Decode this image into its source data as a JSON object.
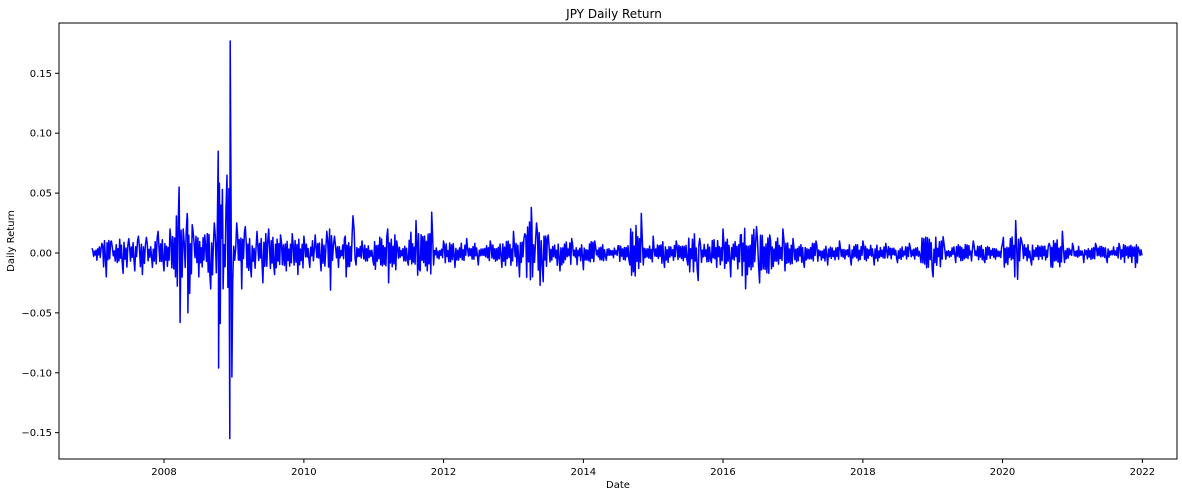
{
  "chart_data": {
    "type": "line",
    "title": "JPY Daily Return",
    "xlabel": "Date",
    "ylabel": "Daily Return",
    "x_range": [
      "2006-07-01",
      "2022-07-01"
    ],
    "ylim": [
      -0.172,
      0.192
    ],
    "x_ticks": [
      {
        "date": "2008-01-01",
        "label": "2008"
      },
      {
        "date": "2010-01-01",
        "label": "2010"
      },
      {
        "date": "2012-01-01",
        "label": "2012"
      },
      {
        "date": "2014-01-01",
        "label": "2014"
      },
      {
        "date": "2016-01-01",
        "label": "2016"
      },
      {
        "date": "2018-01-01",
        "label": "2018"
      },
      {
        "date": "2020-01-01",
        "label": "2020"
      },
      {
        "date": "2022-01-01",
        "label": "2022"
      }
    ],
    "y_ticks": [
      {
        "value": -0.15,
        "label": "−0.15"
      },
      {
        "value": -0.1,
        "label": "−0.10"
      },
      {
        "value": -0.05,
        "label": "−0.05"
      },
      {
        "value": 0.0,
        "label": "0.00"
      },
      {
        "value": 0.05,
        "label": "0.05"
      },
      {
        "value": 0.1,
        "label": "0.10"
      },
      {
        "value": 0.15,
        "label": "0.15"
      }
    ],
    "grid": false,
    "legend": "none",
    "series": [
      {
        "color": "#0000ff",
        "points": [
          [
            "2006-12-20",
            0.004
          ],
          [
            "2007-01-15",
            -0.006
          ],
          [
            "2007-02-10",
            0.008
          ],
          [
            "2007-03-05",
            -0.02
          ],
          [
            "2007-04-01",
            0.01
          ],
          [
            "2007-05-01",
            -0.008
          ],
          [
            "2007-06-01",
            -0.017
          ],
          [
            "2007-07-01",
            0.012
          ],
          [
            "2007-08-01",
            -0.015
          ],
          [
            "2007-08-20",
            0.014
          ],
          [
            "2007-09-10",
            -0.018
          ],
          [
            "2007-10-01",
            0.013
          ],
          [
            "2007-11-01",
            -0.012
          ],
          [
            "2007-12-01",
            0.018
          ],
          [
            "2008-01-01",
            -0.015
          ],
          [
            "2008-02-01",
            0.02
          ],
          [
            "2008-03-01",
            -0.02
          ],
          [
            "2008-03-20",
            0.055
          ],
          [
            "2008-03-25",
            -0.058
          ],
          [
            "2008-04-10",
            0.02
          ],
          [
            "2008-05-01",
            0.033
          ],
          [
            "2008-05-05",
            -0.05
          ],
          [
            "2008-06-01",
            0.018
          ],
          [
            "2008-07-01",
            -0.02
          ],
          [
            "2008-08-01",
            0.015
          ],
          [
            "2008-09-01",
            -0.03
          ],
          [
            "2008-09-20",
            0.025
          ],
          [
            "2008-10-10",
            0.085
          ],
          [
            "2008-10-12",
            -0.096
          ],
          [
            "2008-10-25",
            0.04
          ],
          [
            "2008-11-01",
            0.053
          ],
          [
            "2008-11-05",
            -0.03
          ],
          [
            "2008-11-20",
            0.038
          ],
          [
            "2008-12-10",
            -0.155
          ],
          [
            "2008-12-12",
            0.177
          ],
          [
            "2008-12-25",
            -0.025
          ],
          [
            "2009-01-15",
            0.025
          ],
          [
            "2009-02-10",
            -0.03
          ],
          [
            "2009-03-01",
            0.022
          ],
          [
            "2009-04-01",
            -0.02
          ],
          [
            "2009-05-01",
            0.018
          ],
          [
            "2009-06-01",
            -0.025
          ],
          [
            "2009-07-01",
            0.02
          ],
          [
            "2009-08-01",
            -0.018
          ],
          [
            "2009-09-01",
            0.015
          ],
          [
            "2009-10-01",
            -0.015
          ],
          [
            "2009-11-01",
            0.016
          ],
          [
            "2009-12-01",
            -0.018
          ],
          [
            "2010-01-01",
            0.014
          ],
          [
            "2010-02-01",
            -0.012
          ],
          [
            "2010-03-01",
            0.015
          ],
          [
            "2010-04-01",
            -0.015
          ],
          [
            "2010-05-01",
            0.018
          ],
          [
            "2010-05-20",
            -0.031
          ],
          [
            "2010-06-10",
            0.014
          ],
          [
            "2010-07-01",
            -0.012
          ],
          [
            "2010-08-01",
            0.012
          ],
          [
            "2010-09-15",
            0.031
          ],
          [
            "2010-10-01",
            -0.01
          ],
          [
            "2010-11-01",
            0.01
          ],
          [
            "2011-01-01",
            -0.01
          ],
          [
            "2011-03-15",
            0.02
          ],
          [
            "2011-03-20",
            -0.025
          ],
          [
            "2011-05-01",
            0.01
          ],
          [
            "2011-07-01",
            -0.01
          ],
          [
            "2011-08-10",
            0.027
          ],
          [
            "2011-09-01",
            -0.015
          ],
          [
            "2011-10-31",
            0.034
          ],
          [
            "2011-11-10",
            -0.01
          ],
          [
            "2012-01-01",
            0.01
          ],
          [
            "2012-03-01",
            -0.012
          ],
          [
            "2012-05-01",
            0.012
          ],
          [
            "2012-07-01",
            -0.01
          ],
          [
            "2012-09-01",
            0.01
          ],
          [
            "2012-11-01",
            -0.012
          ],
          [
            "2013-01-01",
            0.018
          ],
          [
            "2013-02-01",
            -0.02
          ],
          [
            "2013-03-01",
            0.016
          ],
          [
            "2013-04-04",
            0.038
          ],
          [
            "2013-04-10",
            -0.02
          ],
          [
            "2013-05-01",
            0.025
          ],
          [
            "2013-05-20",
            -0.027
          ],
          [
            "2013-06-05",
            -0.024
          ],
          [
            "2013-07-01",
            0.015
          ],
          [
            "2013-09-01",
            -0.015
          ],
          [
            "2013-11-01",
            0.012
          ],
          [
            "2014-01-01",
            -0.014
          ],
          [
            "2014-03-01",
            0.01
          ],
          [
            "2014-05-01",
            -0.006
          ],
          [
            "2014-07-01",
            0.006
          ],
          [
            "2014-09-01",
            -0.01
          ],
          [
            "2014-10-31",
            0.033
          ],
          [
            "2014-11-10",
            -0.01
          ],
          [
            "2015-01-01",
            0.014
          ],
          [
            "2015-03-01",
            -0.012
          ],
          [
            "2015-05-01",
            0.01
          ],
          [
            "2015-07-01",
            -0.01
          ],
          [
            "2015-08-24",
            -0.023
          ],
          [
            "2015-09-01",
            0.012
          ],
          [
            "2015-11-01",
            -0.008
          ],
          [
            "2016-01-01",
            0.02
          ],
          [
            "2016-02-10",
            -0.02
          ],
          [
            "2016-04-01",
            0.015
          ],
          [
            "2016-04-28",
            -0.03
          ],
          [
            "2016-06-24",
            0.022
          ],
          [
            "2016-07-10",
            -0.025
          ],
          [
            "2016-09-01",
            0.015
          ],
          [
            "2016-11-09",
            0.02
          ],
          [
            "2016-11-20",
            -0.015
          ],
          [
            "2017-01-01",
            0.012
          ],
          [
            "2017-03-01",
            -0.012
          ],
          [
            "2017-05-01",
            0.01
          ],
          [
            "2017-07-01",
            -0.01
          ],
          [
            "2017-09-01",
            0.01
          ],
          [
            "2017-11-01",
            -0.01
          ],
          [
            "2018-01-01",
            0.01
          ],
          [
            "2018-03-01",
            -0.01
          ],
          [
            "2018-05-01",
            0.008
          ],
          [
            "2018-07-01",
            -0.008
          ],
          [
            "2018-09-01",
            0.008
          ],
          [
            "2018-11-01",
            -0.008
          ],
          [
            "2019-01-03",
            -0.02
          ],
          [
            "2019-03-01",
            0.008
          ],
          [
            "2019-05-01",
            -0.008
          ],
          [
            "2019-08-01",
            0.01
          ],
          [
            "2019-10-01",
            -0.008
          ],
          [
            "2020-01-01",
            0.008
          ],
          [
            "2020-03-05",
            -0.02
          ],
          [
            "2020-03-10",
            0.027
          ],
          [
            "2020-03-20",
            -0.022
          ],
          [
            "2020-04-10",
            0.01
          ],
          [
            "2020-06-01",
            -0.01
          ],
          [
            "2020-09-01",
            0.008
          ],
          [
            "2020-11-09",
            0.018
          ],
          [
            "2020-11-20",
            -0.008
          ],
          [
            "2021-01-01",
            0.008
          ],
          [
            "2021-03-01",
            -0.008
          ],
          [
            "2021-05-01",
            0.008
          ],
          [
            "2021-07-01",
            -0.008
          ],
          [
            "2021-09-01",
            0.008
          ],
          [
            "2021-11-26",
            -0.012
          ],
          [
            "2021-12-10",
            0.005
          ],
          [
            "2021-12-30",
            -0.002
          ]
        ]
      }
    ]
  }
}
